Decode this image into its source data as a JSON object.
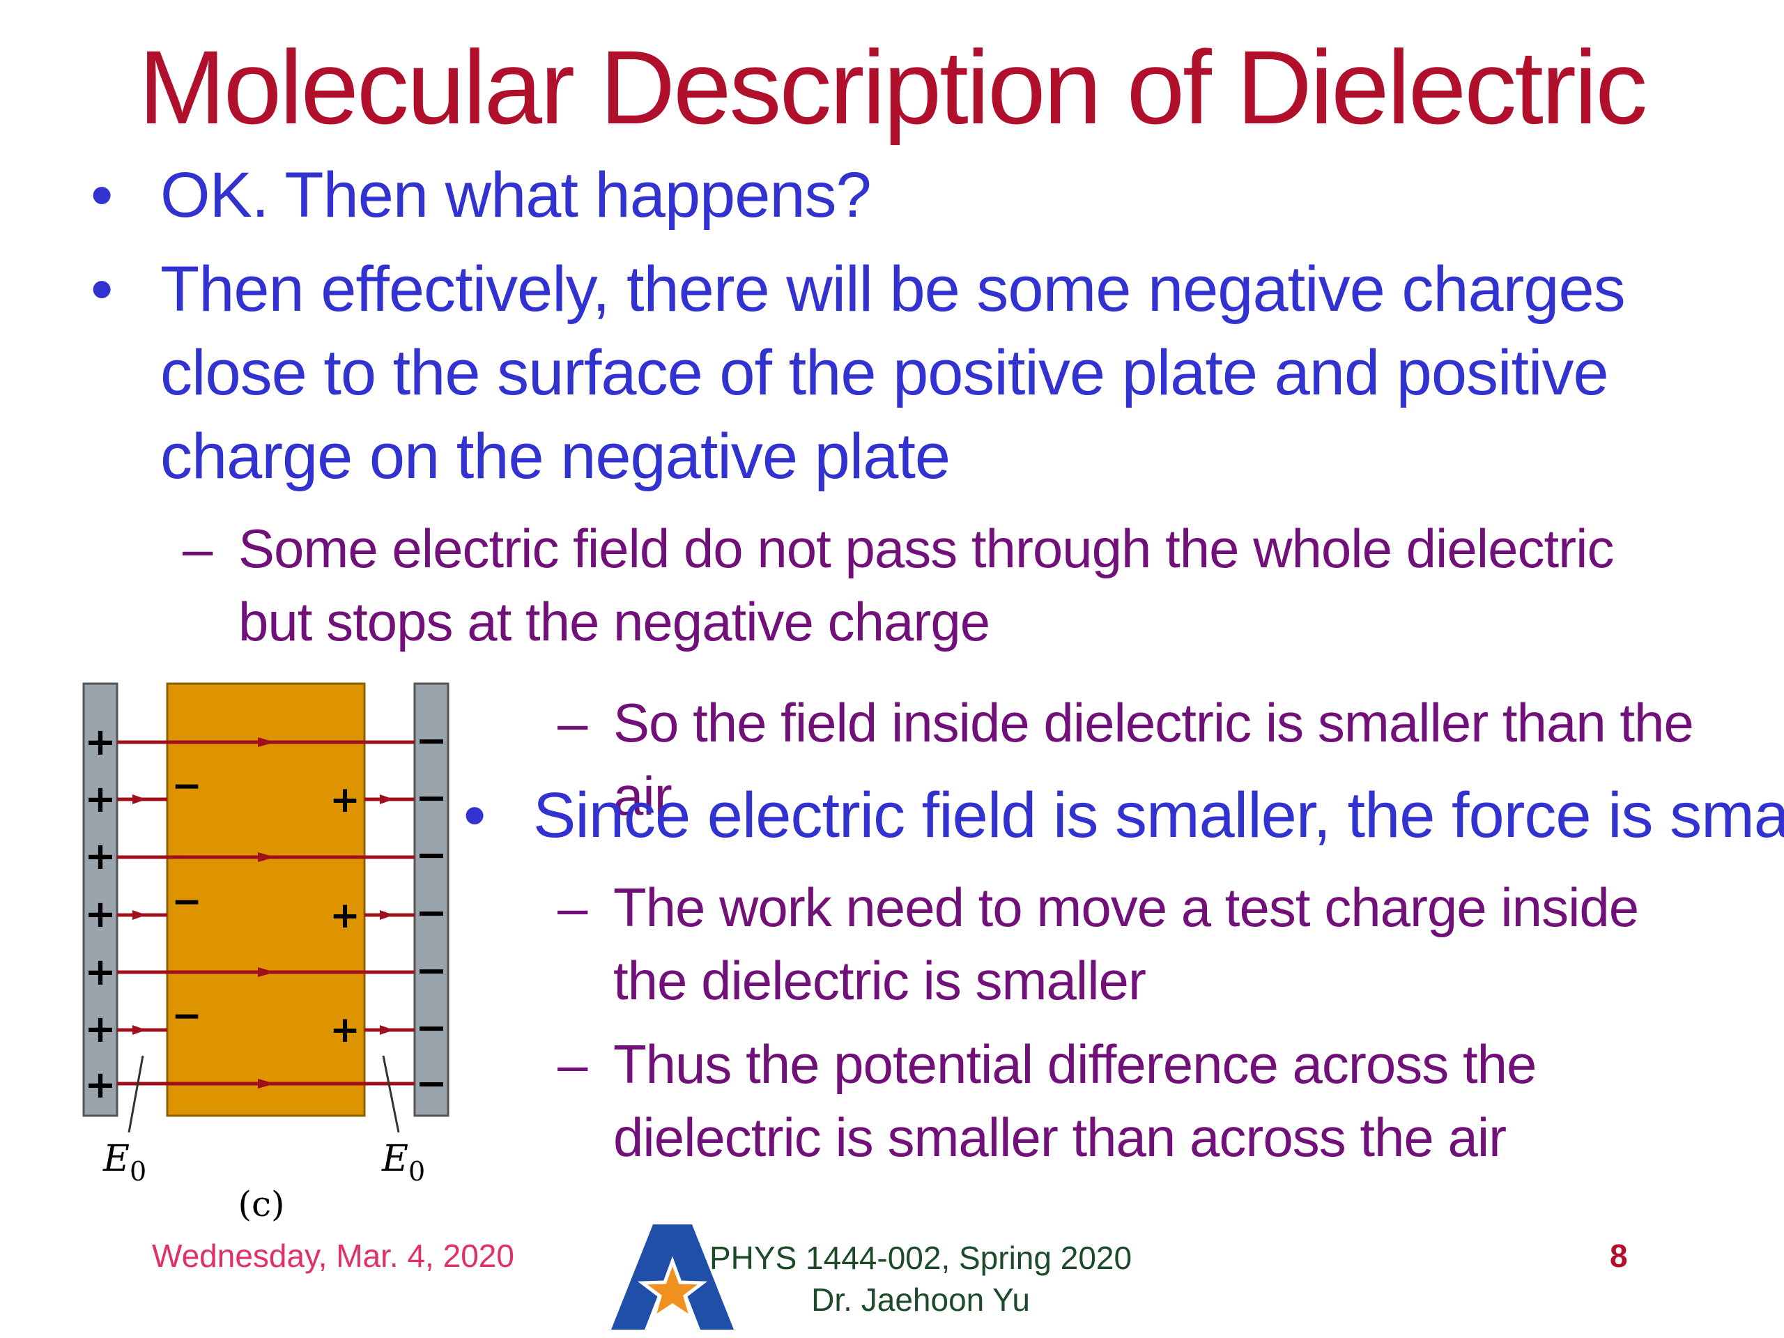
{
  "slide": {
    "title": "Molecular Description of Dielectric",
    "bullets": [
      {
        "marker": "•",
        "text": "OK. Then what happens?"
      },
      {
        "marker": "•",
        "text": "Then effectively, there will be some negative charges close to the surface of the positive plate and positive charge on the negative plate"
      },
      {
        "marker": "•",
        "text": "Since electric field is smaller, the force is smaller"
      }
    ],
    "subbullets": [
      {
        "marker": "–",
        "text": "Some electric field do not pass through the whole dielectric but stops at the negative charge"
      },
      {
        "marker": "–",
        "text": "So the field inside dielectric is smaller than the air"
      },
      {
        "marker": "–",
        "text": "The work need to move a test charge inside the dielectric is smaller"
      },
      {
        "marker": "–",
        "text": "Thus the potential difference across the dielectric is smaller than across the air"
      }
    ]
  },
  "figure": {
    "left_label": "E",
    "left_label_sub": "0",
    "right_label": "E",
    "right_label_sub": "0",
    "caption": "(c)",
    "plus_sign": "+",
    "minus_sign": "−"
  },
  "footer": {
    "date": "Wednesday, Mar. 4, 2020",
    "course_line1": "PHYS 1444-002, Spring 2020",
    "course_line2": "Dr. Jaehoon Yu",
    "page": "8"
  },
  "colors": {
    "title": "#b0102b",
    "bullet": "#3232d0",
    "subbullet": "#72107a",
    "dielectric": "#dd9400",
    "plate": "#9aa4ad",
    "field_line": "#a0101c"
  }
}
